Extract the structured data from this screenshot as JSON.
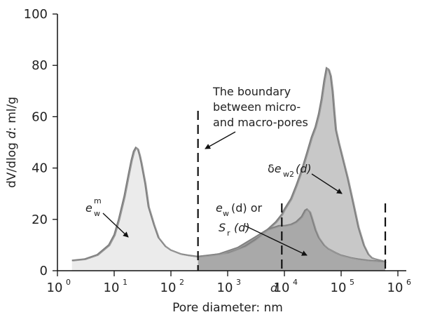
{
  "chart_data": {
    "type": "area",
    "x_scale": "log",
    "xlim": [
      1,
      1000000
    ],
    "ylim": [
      0,
      100
    ],
    "x_ticks": [
      {
        "value": 1,
        "label": "10",
        "sup": "0"
      },
      {
        "value": 10,
        "label": "10",
        "sup": "1"
      },
      {
        "value": 100,
        "label": "10",
        "sup": "2"
      },
      {
        "value": 1000,
        "label": "10",
        "sup": "3"
      },
      {
        "value": 10000,
        "label": "10",
        "sup": "4"
      },
      {
        "value": 100000,
        "label": "10",
        "sup": "5"
      },
      {
        "value": 1000000,
        "label": "10",
        "sup": "6"
      }
    ],
    "y_ticks": [
      0,
      20,
      40,
      60,
      80,
      100
    ],
    "xlabel": "Pore diameter: nm",
    "ylabel_parts": {
      "pre": "dV/dlog ",
      "var": "d",
      "post": ": ml/g"
    },
    "series": [
      {
        "color": "#808080",
        "fill": "#ebebeb",
        "x": [
          1.8,
          3,
          5,
          8,
          10,
          12,
          15,
          18,
          20,
          22,
          24,
          26,
          28,
          30,
          35,
          40,
          50,
          60,
          80,
          100,
          150,
          200,
          300
        ],
        "values": [
          4,
          4.5,
          6.2,
          10,
          14,
          20,
          29,
          38,
          43,
          46.5,
          48,
          47.5,
          45,
          42,
          34,
          25,
          18,
          13,
          9.5,
          8,
          6.5,
          6,
          5.5
        ]
      },
      {
        "color": "#808080",
        "fill": "#c8c8c8",
        "x": [
          300,
          500,
          1000,
          2000,
          3000,
          5000,
          7000,
          9000,
          10000,
          13000,
          16000,
          20000,
          25000,
          30000,
          35000,
          40000,
          45000,
          50000,
          55000,
          60000,
          65000,
          70000,
          75000,
          80000,
          90000,
          100000,
          130000,
          160000,
          200000,
          250000,
          300000,
          350000,
          400000,
          500000,
          600000
        ],
        "values": [
          5.5,
          6,
          7,
          9.5,
          12,
          16,
          19,
          22,
          24,
          28,
          33,
          39,
          46,
          52,
          56,
          61,
          67,
          74,
          79,
          78.5,
          76,
          70,
          62,
          55,
          50,
          46,
          36,
          27,
          17,
          10,
          6.5,
          5,
          4.5,
          4,
          3.5
        ]
      },
      {
        "color": "#808080",
        "fill": "#a9a9a9",
        "x": [
          300,
          700,
          1500,
          3000,
          5000,
          8000,
          10000,
          13000,
          16000,
          20000,
          23000,
          25000,
          28000,
          30000,
          35000,
          40000,
          50000,
          60000,
          80000,
          100000,
          150000,
          200000,
          300000,
          400000,
          500000,
          600000
        ],
        "values": [
          5.5,
          6.5,
          9,
          13,
          16,
          17.5,
          17.5,
          18,
          19,
          21,
          23.5,
          24,
          23,
          21,
          16,
          13,
          10,
          8.5,
          7,
          6,
          5,
          4.5,
          4,
          3.8,
          3.6,
          3.5
        ]
      }
    ],
    "boundary_line_x": 300,
    "d_line_x": 9000,
    "end_line_x": 600000,
    "annotations": {
      "boundary_lines": [
        "The boundary",
        "between micro-",
        "and macro-pores"
      ],
      "ew_m": {
        "base": "e",
        "sub": "w",
        "sup": "m"
      },
      "delta_ew2": {
        "delta": "δ",
        "var": "e",
        "sub": "w2",
        "arg": "(d)"
      },
      "ew_or": {
        "var": "e",
        "sub": "w",
        "arg": "(d) or"
      },
      "sr": {
        "var": "S",
        "sub": "r",
        "arg": "(d)"
      },
      "d_marker": "d"
    }
  }
}
